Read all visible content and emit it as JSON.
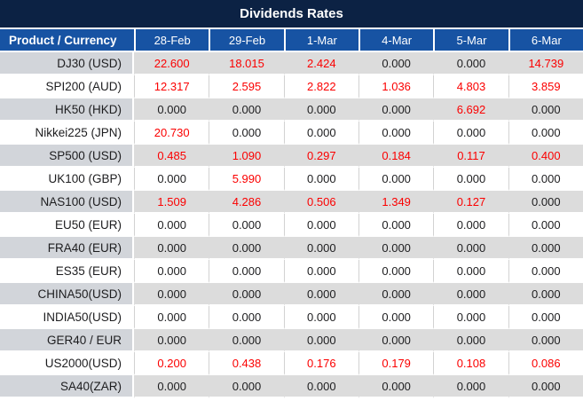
{
  "title": "Dividends Rates",
  "colors": {
    "title_bar_bg": "#0c2244",
    "header_bg": "#1753a3",
    "row_gray": "#dcdcdc",
    "product_gray": "#d2d5da",
    "value_red": "#fb0000",
    "value_black": "#1d1d1f"
  },
  "table": {
    "product_header": "Product / Currency",
    "date_headers": [
      "28-Feb",
      "29-Feb",
      "1-Mar",
      "4-Mar",
      "5-Mar",
      "6-Mar"
    ],
    "rows": [
      {
        "product": "DJ30 (USD)",
        "values": [
          "22.600",
          "18.015",
          "2.424",
          "0.000",
          "0.000",
          "14.739"
        ]
      },
      {
        "product": "SPI200 (AUD)",
        "values": [
          "12.317",
          "2.595",
          "2.822",
          "1.036",
          "4.803",
          "3.859"
        ]
      },
      {
        "product": "HK50 (HKD)",
        "values": [
          "0.000",
          "0.000",
          "0.000",
          "0.000",
          "6.692",
          "0.000"
        ]
      },
      {
        "product": "Nikkei225 (JPN)",
        "values": [
          "20.730",
          "0.000",
          "0.000",
          "0.000",
          "0.000",
          "0.000"
        ]
      },
      {
        "product": "SP500 (USD)",
        "values": [
          "0.485",
          "1.090",
          "0.297",
          "0.184",
          "0.117",
          "0.400"
        ]
      },
      {
        "product": "UK100 (GBP)",
        "values": [
          "0.000",
          "5.990",
          "0.000",
          "0.000",
          "0.000",
          "0.000"
        ]
      },
      {
        "product": "NAS100 (USD)",
        "values": [
          "1.509",
          "4.286",
          "0.506",
          "1.349",
          "0.127",
          "0.000"
        ]
      },
      {
        "product": "EU50 (EUR)",
        "values": [
          "0.000",
          "0.000",
          "0.000",
          "0.000",
          "0.000",
          "0.000"
        ]
      },
      {
        "product": "FRA40 (EUR)",
        "values": [
          "0.000",
          "0.000",
          "0.000",
          "0.000",
          "0.000",
          "0.000"
        ]
      },
      {
        "product": "ES35 (EUR)",
        "values": [
          "0.000",
          "0.000",
          "0.000",
          "0.000",
          "0.000",
          "0.000"
        ]
      },
      {
        "product": "CHINA50(USD)",
        "values": [
          "0.000",
          "0.000",
          "0.000",
          "0.000",
          "0.000",
          "0.000"
        ]
      },
      {
        "product": "INDIA50(USD)",
        "values": [
          "0.000",
          "0.000",
          "0.000",
          "0.000",
          "0.000",
          "0.000"
        ]
      },
      {
        "product": "GER40 / EUR",
        "values": [
          "0.000",
          "0.000",
          "0.000",
          "0.000",
          "0.000",
          "0.000"
        ]
      },
      {
        "product": "US2000(USD)",
        "values": [
          "0.200",
          "0.438",
          "0.176",
          "0.179",
          "0.108",
          "0.086"
        ]
      },
      {
        "product": "SA40(ZAR)",
        "values": [
          "0.000",
          "0.000",
          "0.000",
          "0.000",
          "0.000",
          "0.000"
        ]
      }
    ]
  },
  "chart_data": {
    "type": "table",
    "title": "Dividends Rates",
    "columns": [
      "Product / Currency",
      "28-Feb",
      "29-Feb",
      "1-Mar",
      "4-Mar",
      "5-Mar",
      "6-Mar"
    ],
    "rows": [
      [
        "DJ30 (USD)",
        22.6,
        18.015,
        2.424,
        0.0,
        0.0,
        14.739
      ],
      [
        "SPI200 (AUD)",
        12.317,
        2.595,
        2.822,
        1.036,
        4.803,
        3.859
      ],
      [
        "HK50 (HKD)",
        0.0,
        0.0,
        0.0,
        0.0,
        6.692,
        0.0
      ],
      [
        "Nikkei225 (JPN)",
        20.73,
        0.0,
        0.0,
        0.0,
        0.0,
        0.0
      ],
      [
        "SP500 (USD)",
        0.485,
        1.09,
        0.297,
        0.184,
        0.117,
        0.4
      ],
      [
        "UK100 (GBP)",
        0.0,
        5.99,
        0.0,
        0.0,
        0.0,
        0.0
      ],
      [
        "NAS100 (USD)",
        1.509,
        4.286,
        0.506,
        1.349,
        0.127,
        0.0
      ],
      [
        "EU50 (EUR)",
        0.0,
        0.0,
        0.0,
        0.0,
        0.0,
        0.0
      ],
      [
        "FRA40 (EUR)",
        0.0,
        0.0,
        0.0,
        0.0,
        0.0,
        0.0
      ],
      [
        "ES35 (EUR)",
        0.0,
        0.0,
        0.0,
        0.0,
        0.0,
        0.0
      ],
      [
        "CHINA50(USD)",
        0.0,
        0.0,
        0.0,
        0.0,
        0.0,
        0.0
      ],
      [
        "INDIA50(USD)",
        0.0,
        0.0,
        0.0,
        0.0,
        0.0,
        0.0
      ],
      [
        "GER40 / EUR",
        0.0,
        0.0,
        0.0,
        0.0,
        0.0,
        0.0
      ],
      [
        "US2000(USD)",
        0.2,
        0.438,
        0.176,
        0.179,
        0.108,
        0.086
      ],
      [
        "SA40(ZAR)",
        0.0,
        0.0,
        0.0,
        0.0,
        0.0,
        0.0
      ]
    ],
    "value_color_rule": "non-zero values rendered red, zero values rendered black",
    "legend_position": "none",
    "grid": true
  }
}
